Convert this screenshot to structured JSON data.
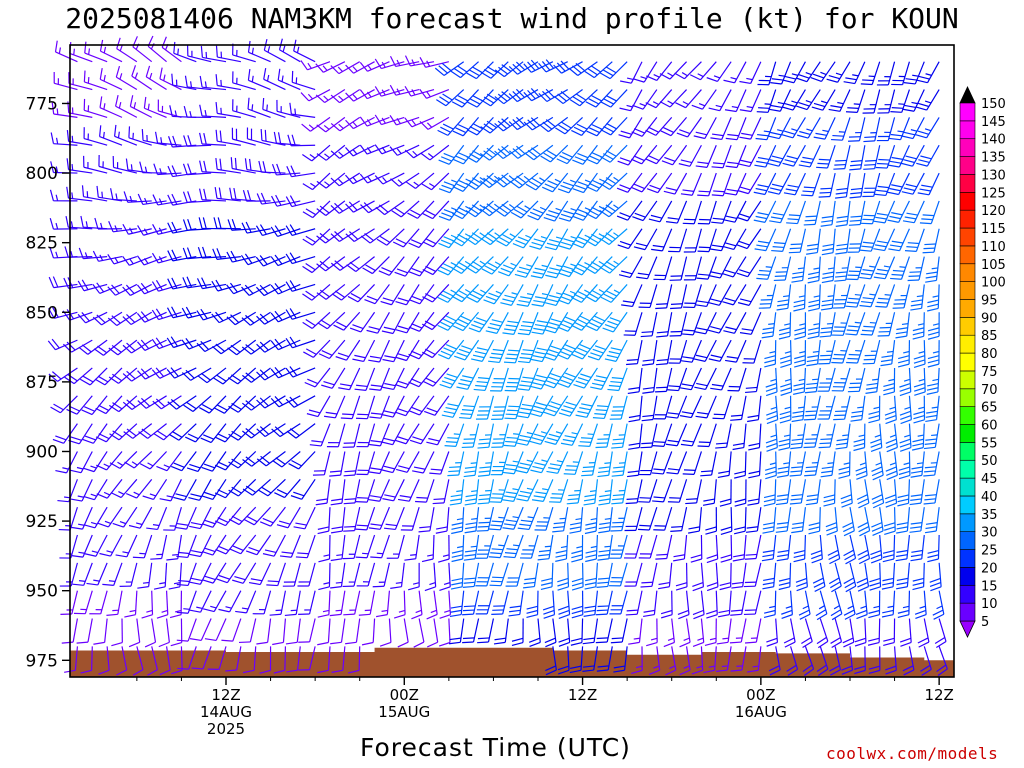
{
  "chart_data": {
    "type": "wind_barb_time_height",
    "title": "2025081406 NAM3KM forecast wind profile (kt) for KOUN",
    "xlabel": "Forecast Time (UTC)",
    "y_axis": {
      "quantity": "pressure (hPa)",
      "reversed": true,
      "range": [
        981,
        754
      ],
      "ticks": [
        775,
        800,
        825,
        850,
        875,
        900,
        925,
        950,
        975
      ]
    },
    "x_axis": {
      "range_hours": [
        -4.5,
        55
      ],
      "ticks": [
        {
          "hour": 6,
          "lines": [
            "12Z",
            "14AUG",
            "2025"
          ]
        },
        {
          "hour": 18,
          "lines": [
            "00Z",
            "15AUG"
          ]
        },
        {
          "hour": 30,
          "lines": [
            "12Z"
          ]
        },
        {
          "hour": 42,
          "lines": [
            "00Z",
            "16AUG"
          ]
        },
        {
          "hour": 54,
          "lines": [
            "12Z"
          ]
        }
      ]
    },
    "barb_levels_hPa": [
      760,
      770,
      780,
      790,
      800,
      810,
      820,
      830,
      840,
      850,
      860,
      870,
      880,
      890,
      900,
      910,
      920,
      930,
      940,
      950,
      960,
      970
    ],
    "terrain": {
      "color": "#a0522d",
      "surface_pressure": [
        {
          "hour": -4.5,
          "p": 971.5
        },
        {
          "hour": 0,
          "p": 971.5
        },
        {
          "hour": 6,
          "p": 972
        },
        {
          "hour": 12,
          "p": 972
        },
        {
          "hour": 16,
          "p": 970.5
        },
        {
          "hour": 22,
          "p": 970.5
        },
        {
          "hour": 28,
          "p": 971.5
        },
        {
          "hour": 33,
          "p": 973
        },
        {
          "hour": 38,
          "p": 972
        },
        {
          "hour": 43,
          "p": 972.5
        },
        {
          "hour": 48,
          "p": 974
        },
        {
          "hour": 53,
          "p": 975
        },
        {
          "hour": 55,
          "p": 975.5
        }
      ]
    },
    "wind_regimes": [
      {
        "hours": [
          -4.5,
          4
        ],
        "low": {
          "dir": 175,
          "spd": 18
        },
        "high": {
          "dir": 300,
          "spd": 12
        }
      },
      {
        "hours": [
          4,
          13
        ],
        "low": {
          "dir": 190,
          "spd": 22
        },
        "high": {
          "dir": 290,
          "spd": 12
        }
      },
      {
        "hours": [
          13,
          22
        ],
        "low": {
          "dir": 175,
          "spd": 20
        },
        "high": {
          "dir": 250,
          "spd": 10
        }
      },
      {
        "hours": [
          22,
          34
        ],
        "low": {
          "dir": 180,
          "spd": 38
        },
        "high": {
          "dir": 235,
          "spd": 22
        }
      },
      {
        "hours": [
          34,
          43
        ],
        "low": {
          "dir": 180,
          "spd": 22
        },
        "high": {
          "dir": 215,
          "spd": 14
        }
      },
      {
        "hours": [
          43,
          55
        ],
        "low": {
          "dir": 170,
          "spd": 35
        },
        "high": {
          "dir": 205,
          "spd": 18
        }
      }
    ],
    "colorbar": {
      "levels": [
        5,
        10,
        15,
        20,
        25,
        30,
        35,
        40,
        45,
        50,
        55,
        60,
        65,
        70,
        75,
        80,
        85,
        90,
        95,
        100,
        105,
        110,
        115,
        120,
        125,
        130,
        135,
        140,
        145,
        150
      ],
      "colors": [
        "#9900ff",
        "#6a00ff",
        "#3300ff",
        "#0000ee",
        "#0033ff",
        "#0066ff",
        "#0099ff",
        "#00ccff",
        "#00e0d0",
        "#00ffaa",
        "#00ff66",
        "#00ee00",
        "#33ff00",
        "#99ff00",
        "#ccff00",
        "#ffff00",
        "#ffee00",
        "#ffcc00",
        "#ffaa00",
        "#ff9900",
        "#ff8800",
        "#ff6600",
        "#ff4400",
        "#ff2200",
        "#ff0000",
        "#ff0044",
        "#ff0088",
        "#ff00bb",
        "#ff00ee",
        "#ff00ff"
      ]
    }
  },
  "credit": "coolwx.com/models"
}
